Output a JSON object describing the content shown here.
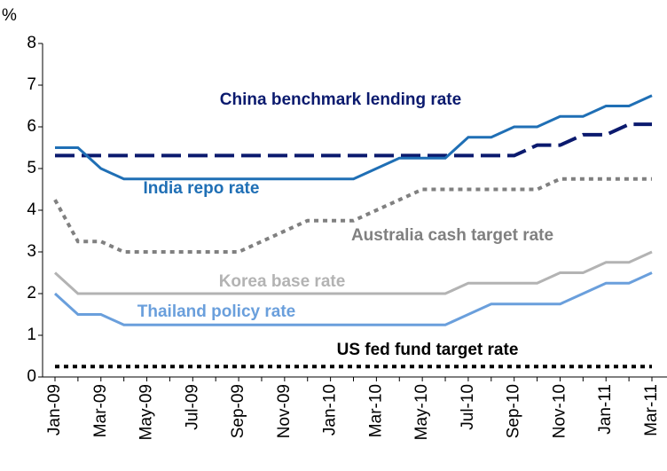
{
  "chart_data": {
    "type": "line",
    "y_unit": "%",
    "categories": [
      "Jan-09",
      null,
      "Mar-09",
      null,
      "May-09",
      null,
      "Jul-09",
      null,
      "Sep-09",
      null,
      "Nov-09",
      null,
      "Jan-10",
      null,
      "Mar-10",
      null,
      "May-10",
      null,
      "Jul-10",
      null,
      "Sep-10",
      null,
      "Nov-10",
      null,
      "Jan-11",
      null,
      "Mar-11"
    ],
    "ylim": [
      0,
      8
    ],
    "yticks": [
      0,
      1,
      2,
      3,
      4,
      5,
      6,
      7,
      8
    ],
    "series": [
      {
        "name": "China benchmark lending rate",
        "color": "#0b1a6e",
        "style": "dashed",
        "values": [
          5.31,
          5.31,
          5.31,
          5.31,
          5.31,
          5.31,
          5.31,
          5.31,
          5.31,
          5.31,
          5.31,
          5.31,
          5.31,
          5.31,
          5.31,
          5.31,
          5.31,
          5.31,
          5.31,
          5.31,
          5.31,
          5.56,
          5.56,
          5.81,
          5.81,
          6.06,
          6.06
        ]
      },
      {
        "name": "India repo rate",
        "color": "#1f6fb5",
        "style": "solid",
        "values": [
          5.5,
          5.5,
          5.0,
          4.75,
          4.75,
          4.75,
          4.75,
          4.75,
          4.75,
          4.75,
          4.75,
          4.75,
          4.75,
          4.75,
          5.0,
          5.25,
          5.25,
          5.25,
          5.75,
          5.75,
          6.0,
          6.0,
          6.25,
          6.25,
          6.5,
          6.5,
          6.75
        ]
      },
      {
        "name": "Australia cash target rate",
        "color": "#808080",
        "style": "dotted",
        "values": [
          4.25,
          3.25,
          3.25,
          3.0,
          3.0,
          3.0,
          3.0,
          3.0,
          3.0,
          3.25,
          3.5,
          3.75,
          3.75,
          3.75,
          4.0,
          4.25,
          4.5,
          4.5,
          4.5,
          4.5,
          4.5,
          4.5,
          4.75,
          4.75,
          4.75,
          4.75,
          4.75
        ]
      },
      {
        "name": "Korea base rate",
        "color": "#b3b3b3",
        "style": "solid",
        "values": [
          2.5,
          2.0,
          2.0,
          2.0,
          2.0,
          2.0,
          2.0,
          2.0,
          2.0,
          2.0,
          2.0,
          2.0,
          2.0,
          2.0,
          2.0,
          2.0,
          2.0,
          2.0,
          2.25,
          2.25,
          2.25,
          2.25,
          2.5,
          2.5,
          2.75,
          2.75,
          3.0
        ]
      },
      {
        "name": "Thailand policy rate",
        "color": "#6a9fdc",
        "style": "solid",
        "values": [
          2.0,
          1.5,
          1.5,
          1.25,
          1.25,
          1.25,
          1.25,
          1.25,
          1.25,
          1.25,
          1.25,
          1.25,
          1.25,
          1.25,
          1.25,
          1.25,
          1.25,
          1.25,
          1.5,
          1.75,
          1.75,
          1.75,
          1.75,
          2.0,
          2.25,
          2.25,
          2.5
        ]
      },
      {
        "name": "US fed fund target rate",
        "color": "#000000",
        "style": "dotted",
        "values": [
          0.25,
          0.25,
          0.25,
          0.25,
          0.25,
          0.25,
          0.25,
          0.25,
          0.25,
          0.25,
          0.25,
          0.25,
          0.25,
          0.25,
          0.25,
          0.25,
          0.25,
          0.25,
          0.25,
          0.25,
          0.25,
          0.25,
          0.25,
          0.25,
          0.25,
          0.25,
          0.25
        ]
      }
    ]
  }
}
